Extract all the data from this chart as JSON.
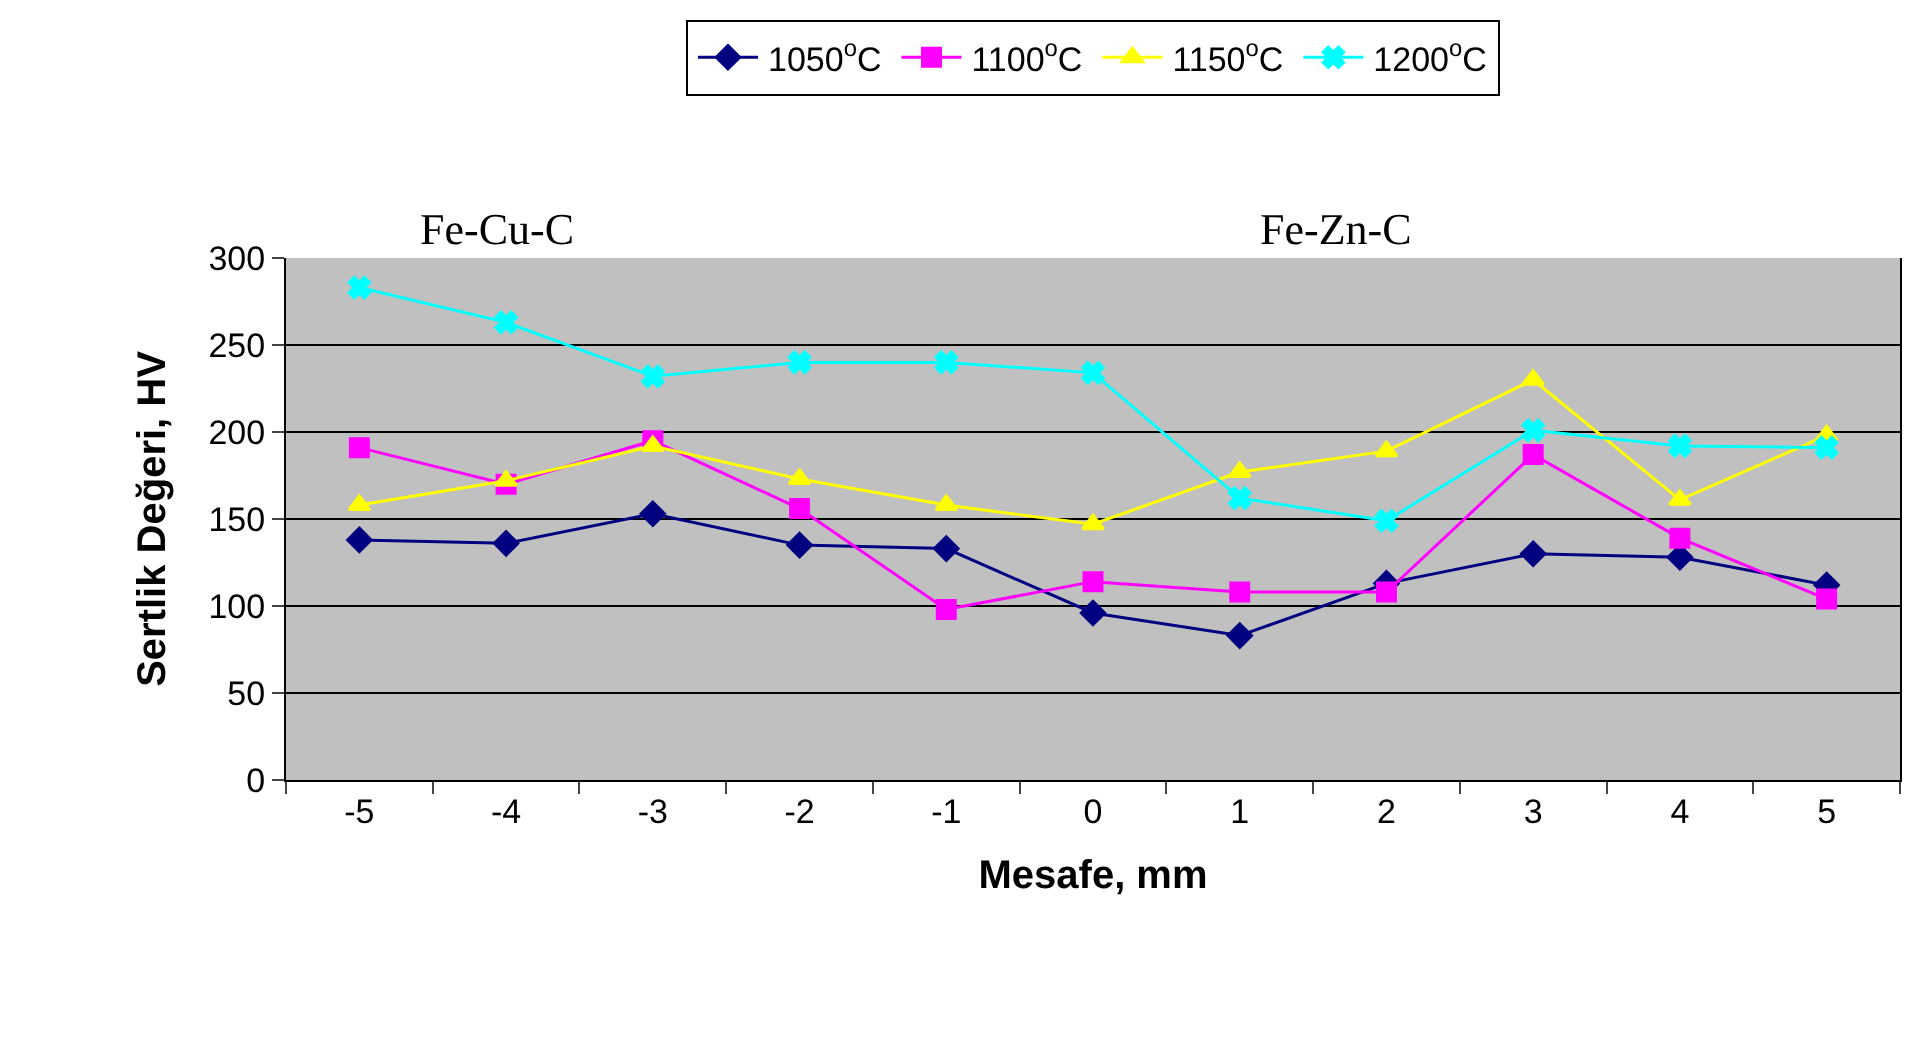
{
  "chart_data": {
    "type": "line",
    "xlabel": "Mesafe, mm",
    "ylabel": "Sertlik Değeri, HV",
    "categories": [
      "-5",
      "-4",
      "-3",
      "-2",
      "-1",
      "0",
      "1",
      "2",
      "3",
      "4",
      "5"
    ],
    "series": [
      {
        "name": "1050$^{o}$C",
        "color": "#000080",
        "marker": "diamond",
        "values": [
          138,
          136,
          153,
          135,
          133,
          96,
          83,
          113,
          130,
          128,
          112
        ]
      },
      {
        "name": "1100$^{o}$C",
        "color": "#ff00ff",
        "marker": "square",
        "values": [
          191,
          170,
          195,
          156,
          98,
          114,
          108,
          108,
          187,
          139,
          104
        ]
      },
      {
        "name": "1150$^{o}$C",
        "color": "#ffff00",
        "marker": "triangle",
        "values": [
          158,
          172,
          192,
          173,
          158,
          147,
          177,
          189,
          230,
          161,
          198
        ]
      },
      {
        "name": "1200$^{o}$C",
        "color": "#00ffff",
        "marker": "cross",
        "values": [
          283,
          263,
          232,
          240,
          240,
          234,
          162,
          149,
          201,
          192,
          191
        ]
      }
    ],
    "annotations": [
      "Fe-Cu-C",
      "Fe-Zn-C"
    ],
    "ylim": [
      0,
      300
    ],
    "yticks": [
      0,
      50,
      100,
      150,
      200,
      250,
      300
    ],
    "grid": "y",
    "legend": "top",
    "line_style": "solid"
  }
}
